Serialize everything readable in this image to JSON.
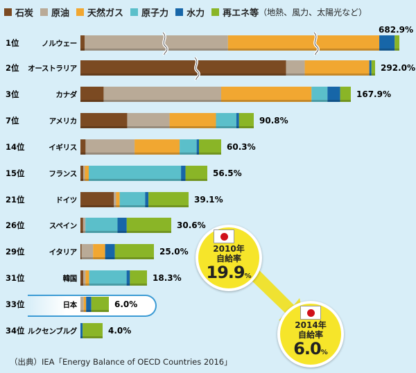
{
  "chart_data": {
    "type": "bar",
    "orientation": "horizontal",
    "stacked": true,
    "unit": "%",
    "legend_position": "top",
    "series": [
      {
        "name": "石炭",
        "color": "#7b4a22"
      },
      {
        "name": "原油",
        "color": "#b9aa97"
      },
      {
        "name": "天然ガス",
        "color": "#f1a731"
      },
      {
        "name": "原子力",
        "color": "#5bbfca"
      },
      {
        "name": "水力",
        "color": "#1766a8"
      },
      {
        "name": "再エネ等",
        "color": "#8ab527"
      }
    ],
    "legend_note": "（地熱、風力、太陽光など）",
    "rows": [
      {
        "rank": "1位",
        "country": "ノルウェー",
        "total": "682.9%",
        "values": [
          8.9,
          307.0,
          324.0,
          0,
          33.0,
          10.0
        ],
        "axis_break": true
      },
      {
        "rank": "2位",
        "country": "オーストラリア",
        "total": "292.0%",
        "values": [
          203.8,
          18.5,
          64.0,
          0,
          2.1,
          3.6
        ],
        "axis_break": true
      },
      {
        "rank": "3位",
        "country": "カナダ",
        "total": "167.9%",
        "values": [
          14.4,
          73.0,
          56.1,
          9.9,
          7.9,
          6.6
        ]
      },
      {
        "rank": "7位",
        "country": "アメリカ",
        "total": "90.8%",
        "values": [
          24.5,
          22.2,
          24.3,
          10.7,
          1.4,
          7.7
        ]
      },
      {
        "rank": "14位",
        "country": "イギリス",
        "total": "60.3%",
        "values": [
          2.2,
          21.0,
          19.3,
          7.3,
          1.0,
          9.5
        ]
      },
      {
        "rank": "15位",
        "country": "フランス",
        "total": "56.5%",
        "values": [
          1.3,
          0.7,
          1.7,
          41.1,
          2.0,
          9.7
        ]
      },
      {
        "rank": "21位",
        "country": "ドイツ",
        "total": "39.1%",
        "values": [
          12.1,
          0.8,
          1.3,
          9.2,
          1.2,
          14.5
        ]
      },
      {
        "rank": "26位",
        "country": "スペイン",
        "total": "30.6%",
        "values": [
          0.9,
          0.8,
          0,
          10.8,
          3.1,
          15.0
        ]
      },
      {
        "rank": "29位",
        "country": "イタリア",
        "total": "25.0%",
        "values": [
          0.4,
          3.9,
          4.1,
          0,
          3.3,
          13.3
        ]
      },
      {
        "rank": "31位",
        "country": "韓国",
        "total": "18.3%",
        "values": [
          0.8,
          0.6,
          1.0,
          10.3,
          0.9,
          4.7
        ]
      },
      {
        "rank": "33位",
        "country": "日本",
        "total": "6.0%",
        "values": [
          0,
          0.7,
          0.5,
          0,
          1.1,
          3.7
        ],
        "highlight": true
      },
      {
        "rank": "34位",
        "country": "ルクセンブルグ",
        "total": "4.0%",
        "values": [
          0,
          0,
          0,
          0,
          0.4,
          3.6
        ]
      }
    ]
  },
  "callouts": {
    "y2010": {
      "year": "2010年",
      "label": "自給率",
      "value": "19.9",
      "unit": "%"
    },
    "y2014": {
      "year": "2014年",
      "label": "自給率",
      "value": "6.0",
      "unit": "%"
    }
  },
  "source": "（出典）IEA「Energy Balance of OECD Countries 2016」"
}
